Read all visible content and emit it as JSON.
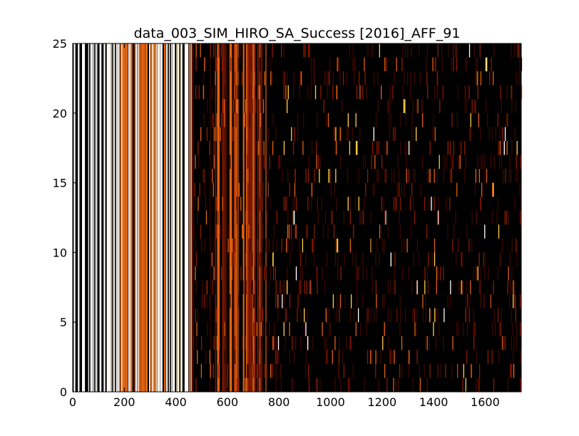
{
  "chart_data": {
    "type": "heatmap",
    "title": "data_003_SIM_HIRO_SA_Success [2016]_AFF_91",
    "xlabel": "",
    "ylabel": "",
    "xlim": [
      0,
      1740
    ],
    "ylim": [
      0,
      25
    ],
    "x_ticks": [
      0,
      200,
      400,
      600,
      800,
      1000,
      1200,
      1400,
      1600
    ],
    "y_ticks": [
      0,
      5,
      10,
      15,
      20,
      25
    ],
    "x_tick_labels": [
      "0",
      "200",
      "400",
      "600",
      "800",
      "1000",
      "1200",
      "1400",
      "1600"
    ],
    "y_tick_labels": [
      "0",
      "5",
      "10",
      "15",
      "20",
      "25"
    ],
    "n_rows": 25,
    "n_cols": 1740,
    "colormap": "hot",
    "grid": false,
    "background_color": "#000000",
    "colors": {
      "frame": "#000000",
      "dark_red": "#3a0800",
      "red": "#8a1a00",
      "orange": "#e06010",
      "yellow": "#ffd040",
      "white": "#ffffff"
    },
    "column_bands": [
      {
        "x_range": [
          0,
          120
        ],
        "level": "white",
        "note": "alternating white/black stripes"
      },
      {
        "x_range": [
          120,
          180
        ],
        "level": "white-cream",
        "note": "light stripes"
      },
      {
        "x_range": [
          180,
          330
        ],
        "level": "orange",
        "note": "dense orange stripes"
      },
      {
        "x_range": [
          330,
          460
        ],
        "level": "white-cream",
        "note": "light stripes"
      },
      {
        "x_range": [
          460,
          560
        ],
        "level": "dark-red",
        "note": "sparse dark stripes"
      },
      {
        "x_range": [
          560,
          750
        ],
        "level": "red-orange",
        "note": "red/orange stripes"
      },
      {
        "x_range": [
          750,
          1740
        ],
        "level": "dark",
        "note": "mostly black with sparse red/yellow speckles"
      }
    ]
  }
}
